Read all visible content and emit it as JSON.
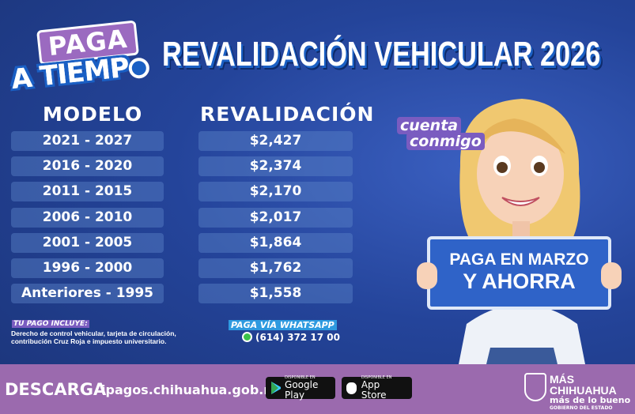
{
  "logo": {
    "line1": "PAGA",
    "line2": "A TIEMP"
  },
  "title": "REVALIDACIÓN VEHICULAR 2026",
  "table": {
    "headers": [
      "MODELO",
      "REVALIDACIÓN"
    ],
    "rows": [
      {
        "modelo": "2021 - 2027",
        "monto": "$2,427"
      },
      {
        "modelo": "2016 - 2020",
        "monto": "$2,374"
      },
      {
        "modelo": "2011 - 2015",
        "monto": "$2,170"
      },
      {
        "modelo": "2006 - 2010",
        "monto": "$2,017"
      },
      {
        "modelo": "2001 - 2005",
        "monto": "$1,864"
      },
      {
        "modelo": "1996 - 2000",
        "monto": "$1,762"
      },
      {
        "modelo": "Anteriores - 1995",
        "monto": "$1,558"
      }
    ]
  },
  "includes": {
    "title": "TU PAGO INCLUYE:",
    "text": "Derecho de control vehicular, tarjeta de circulación, contribución Cruz Roja e impuesto universitario."
  },
  "whatsapp": {
    "title": "PAGA VÍA WHATSAPP",
    "number": "(614) 372 17 00",
    "icon": "whatsapp-icon"
  },
  "badge": {
    "line1": "cuenta",
    "line2": "conmigo"
  },
  "sign": {
    "line1": "PAGA EN MARZO",
    "line2": "Y AHORRA"
  },
  "footer": {
    "descarga": "DESCARGA",
    "url": "ipagos.chihuahua.gob.mx",
    "google": {
      "small": "DISPONIBLE EN",
      "name": "Google Play"
    },
    "apple": {
      "small": "DISPONIBLE EN",
      "name": "App Store"
    },
    "gob": {
      "line1": "MÁS CHIHUAHUA",
      "line2": "más de lo bueno",
      "line3": "GOBIERNO DEL ESTADO"
    }
  },
  "colors": {
    "background": "#1d3b80",
    "footer": "#9b6aae",
    "accent_purple": "#7a5cc0",
    "row": "#4a6fb8"
  }
}
